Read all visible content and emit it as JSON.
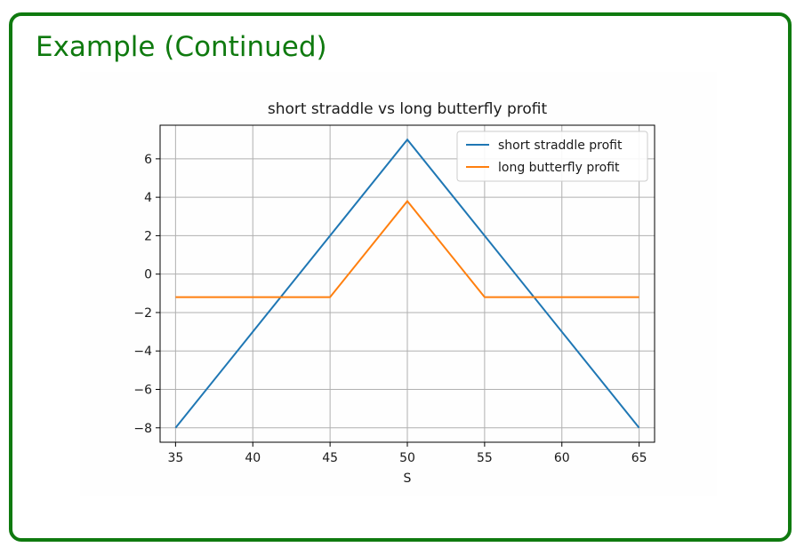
{
  "slide": {
    "title": "Example (Continued)"
  },
  "colors": {
    "frame": "#0f7a0f",
    "title": "#0f7a0f"
  },
  "chart_data": {
    "type": "line",
    "title": "short straddle vs long butterfly profit",
    "xlabel": "S",
    "ylabel": "",
    "xlim": [
      34,
      66
    ],
    "ylim": [
      -8.75,
      7.75
    ],
    "xticks": [
      35,
      40,
      45,
      50,
      55,
      60,
      65
    ],
    "yticks": [
      -8,
      -6,
      -4,
      -2,
      0,
      2,
      4,
      6
    ],
    "grid": true,
    "legend_position": "top-right",
    "series": [
      {
        "name": "short straddle profit",
        "color": "#1f77b4",
        "x": [
          35,
          50,
          65
        ],
        "y": [
          -8,
          7,
          -8
        ]
      },
      {
        "name": "long butterfly profit",
        "color": "#ff7f0e",
        "x": [
          35,
          45,
          50,
          55,
          65
        ],
        "y": [
          -1.2,
          -1.2,
          3.8,
          -1.2,
          -1.2
        ]
      }
    ]
  }
}
